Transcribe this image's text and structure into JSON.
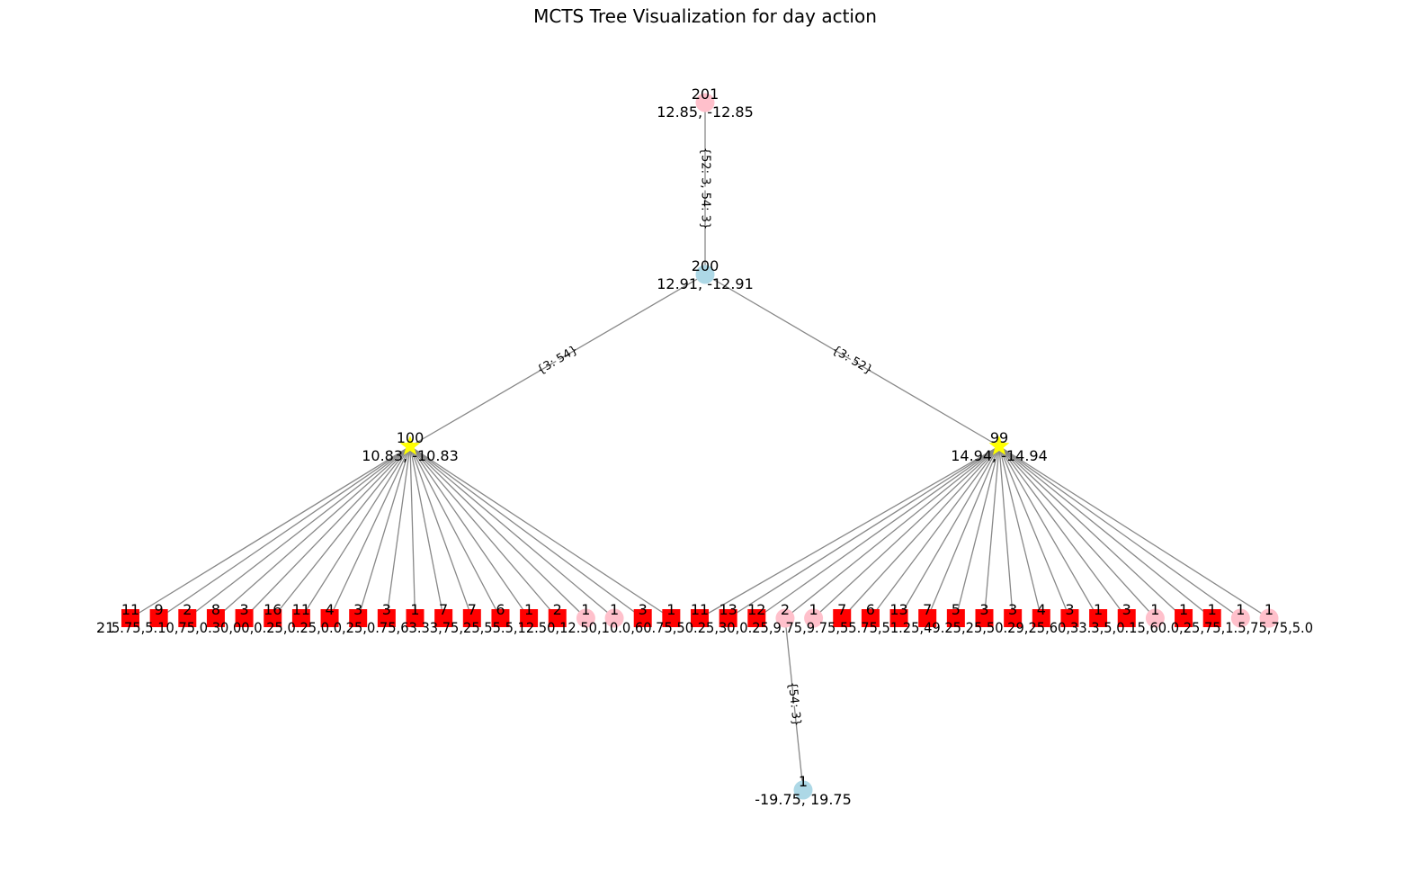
{
  "title": "MCTS Tree Visualization for day action",
  "colors": {
    "edge": "#888888",
    "pink": "#ffc0cb",
    "lightblue": "#add8e6",
    "yellow": "#ffff00",
    "red": "#ff0000"
  },
  "nodes": {
    "root": {
      "visits": "201",
      "value": "12.85, -12.85",
      "shape": "circle",
      "color": "pink"
    },
    "level1": {
      "visits": "200",
      "value": "12.91, -12.91",
      "shape": "circle",
      "color": "lightblue"
    },
    "left": {
      "visits": "100",
      "value": "10.83, -10.83",
      "shape": "star",
      "color": "yellow"
    },
    "right": {
      "visits": "99",
      "value": "14.94, -14.94",
      "shape": "star",
      "color": "yellow"
    },
    "bottom": {
      "visits": "1",
      "value": "-19.75, 19.75",
      "shape": "circle",
      "color": "lightblue"
    }
  },
  "edges": {
    "root_level1": "{52: 3, 54: 3}",
    "level1_left": "{3: 54}",
    "level1_right": "{3: 52}",
    "leaf_bottom": "{54: 3}"
  },
  "leaves": [
    {
      "visits": "11",
      "shape": "square",
      "color": "red",
      "parent": "left"
    },
    {
      "visits": "9",
      "shape": "square",
      "color": "red",
      "parent": "left"
    },
    {
      "visits": "2",
      "shape": "square",
      "color": "red",
      "parent": "left"
    },
    {
      "visits": "8",
      "shape": "square",
      "color": "red",
      "parent": "left"
    },
    {
      "visits": "3",
      "shape": "square",
      "color": "red",
      "parent": "left"
    },
    {
      "visits": "16",
      "shape": "square",
      "color": "red",
      "parent": "left"
    },
    {
      "visits": "11",
      "shape": "square",
      "color": "red",
      "parent": "left"
    },
    {
      "visits": "4",
      "shape": "square",
      "color": "red",
      "parent": "left"
    },
    {
      "visits": "3",
      "shape": "square",
      "color": "red",
      "parent": "left"
    },
    {
      "visits": "3",
      "shape": "square",
      "color": "red",
      "parent": "left"
    },
    {
      "visits": "1",
      "shape": "square",
      "color": "red",
      "parent": "left"
    },
    {
      "visits": "7",
      "shape": "square",
      "color": "red",
      "parent": "left"
    },
    {
      "visits": "7",
      "shape": "square",
      "color": "red",
      "parent": "left"
    },
    {
      "visits": "6",
      "shape": "square",
      "color": "red",
      "parent": "left"
    },
    {
      "visits": "1",
      "shape": "square",
      "color": "red",
      "parent": "left"
    },
    {
      "visits": "2",
      "shape": "square",
      "color": "red",
      "parent": "left"
    },
    {
      "visits": "1",
      "shape": "circle",
      "color": "pink",
      "parent": "left"
    },
    {
      "visits": "1",
      "shape": "circle",
      "color": "pink",
      "parent": "left"
    },
    {
      "visits": "3",
      "shape": "square",
      "color": "red",
      "parent": "left"
    },
    {
      "visits": "1",
      "shape": "square",
      "color": "red",
      "parent": "left"
    },
    {
      "visits": "11",
      "shape": "square",
      "color": "red",
      "parent": "right"
    },
    {
      "visits": "13",
      "shape": "square",
      "color": "red",
      "parent": "right"
    },
    {
      "visits": "12",
      "shape": "square",
      "color": "red",
      "parent": "right"
    },
    {
      "visits": "2",
      "shape": "circle",
      "color": "pink",
      "parent": "right"
    },
    {
      "visits": "1",
      "shape": "circle",
      "color": "pink",
      "parent": "right"
    },
    {
      "visits": "7",
      "shape": "square",
      "color": "red",
      "parent": "right"
    },
    {
      "visits": "6",
      "shape": "square",
      "color": "red",
      "parent": "right"
    },
    {
      "visits": "13",
      "shape": "square",
      "color": "red",
      "parent": "right"
    },
    {
      "visits": "7",
      "shape": "square",
      "color": "red",
      "parent": "right"
    },
    {
      "visits": "5",
      "shape": "square",
      "color": "red",
      "parent": "right"
    },
    {
      "visits": "3",
      "shape": "square",
      "color": "red",
      "parent": "right"
    },
    {
      "visits": "3",
      "shape": "square",
      "color": "red",
      "parent": "right"
    },
    {
      "visits": "4",
      "shape": "square",
      "color": "red",
      "parent": "right"
    },
    {
      "visits": "3",
      "shape": "square",
      "color": "red",
      "parent": "right"
    },
    {
      "visits": "1",
      "shape": "square",
      "color": "red",
      "parent": "right"
    },
    {
      "visits": "3",
      "shape": "square",
      "color": "red",
      "parent": "right"
    },
    {
      "visits": "1",
      "shape": "circle",
      "color": "pink",
      "parent": "right"
    },
    {
      "visits": "1",
      "shape": "square",
      "color": "red",
      "parent": "right"
    },
    {
      "visits": "1",
      "shape": "square",
      "color": "red",
      "parent": "right"
    },
    {
      "visits": "1",
      "shape": "circle",
      "color": "pink",
      "parent": "right"
    },
    {
      "visits": "1",
      "shape": "circle",
      "color": "pink",
      "parent": "right"
    }
  ],
  "leaf_value_first": "21",
  "leaf_value_overlap": "5.75,5.10,75,0.30,00,0.25,0.25,0.0,25,0.75,63.33,75,25,55.5,12.50,12.50,10.0,60.75,50.25,30,0.25,9.75,9.75,55.75,51.25,49.25,25,50.29,25,60,33.3,5,0.15,60.0,25,75,1.5,75,75,5.0"
}
